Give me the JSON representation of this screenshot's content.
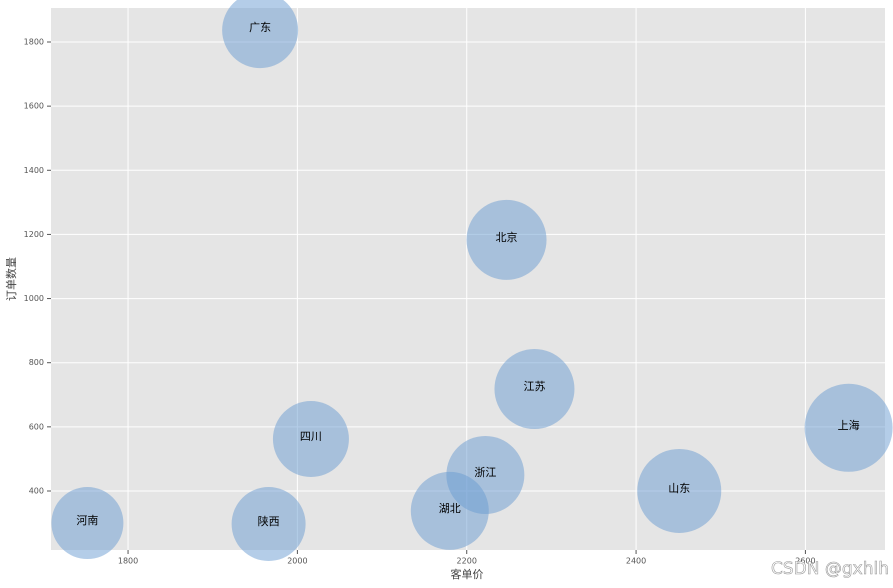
{
  "chart_data": {
    "type": "scatter",
    "xlabel": "客单价",
    "ylabel": "订单数量",
    "labels": [
      "广东",
      "北京",
      "江苏",
      "上海",
      "四川",
      "浙江",
      "山东",
      "湖北",
      "河南",
      "陕西"
    ],
    "x": [
      1956,
      2247,
      2280,
      2651,
      2016,
      2222,
      2451,
      2180,
      1752,
      1966
    ],
    "values": [
      1837,
      1183,
      718,
      597,
      562,
      450,
      400,
      338,
      300,
      297
    ],
    "sizes": [
      1444,
      1600,
      1600,
      1936,
      1444,
      1521,
      1764,
      1521,
      1296,
      1369
    ],
    "color": "#6a9bd1",
    "alpha": 0.5,
    "xlim": [
      1709,
      2694
    ],
    "xticks": [
      1800,
      2000,
      2200,
      2400,
      2600
    ],
    "ylim": [
      216,
      1906
    ],
    "yticks": [
      400,
      600,
      800,
      1000,
      1200,
      1400,
      1600,
      1800
    ],
    "grid": true
  },
  "watermark": "CSDN @gxhlh"
}
